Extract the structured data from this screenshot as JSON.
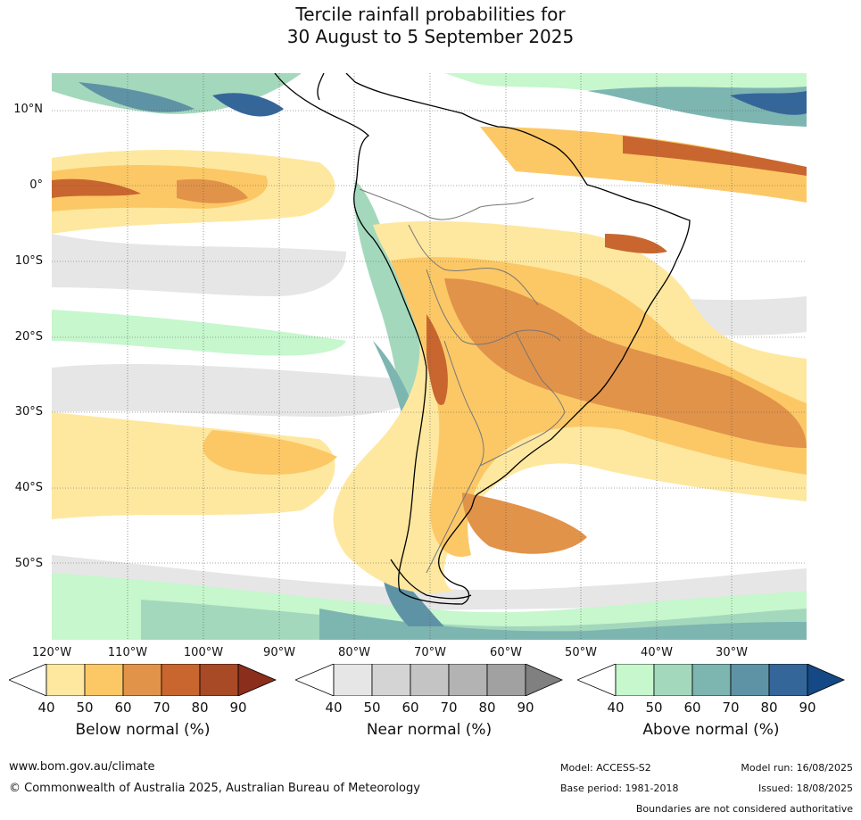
{
  "title": {
    "line1": "Tercile rainfall probabilities for",
    "line2": "30 August to 5 September 2025"
  },
  "map": {
    "lat_labels": [
      "10°N",
      "0°",
      "10°S",
      "20°S",
      "30°S",
      "40°S",
      "50°S"
    ],
    "lon_labels": [
      "120°W",
      "110°W",
      "100°W",
      "90°W",
      "80°W",
      "70°W",
      "60°W",
      "50°W",
      "40°W",
      "30°W"
    ]
  },
  "legends": [
    {
      "title": "Below normal (%)",
      "ticks": [
        "40",
        "50",
        "60",
        "70",
        "80",
        "90"
      ],
      "colors": [
        "#ffffff",
        "#fee8a0",
        "#fcc866",
        "#e1934a",
        "#c9662f",
        "#a84a26",
        "#8b2e1c"
      ]
    },
    {
      "title": "Near normal (%)",
      "ticks": [
        "40",
        "50",
        "60",
        "70",
        "80",
        "90"
      ],
      "colors": [
        "#ffffff",
        "#e6e6e6",
        "#d4d4d4",
        "#c4c4c4",
        "#b3b3b3",
        "#a1a1a1",
        "#808080"
      ]
    },
    {
      "title": "Above normal (%)",
      "ticks": [
        "40",
        "50",
        "60",
        "70",
        "80",
        "90"
      ],
      "colors": [
        "#ffffff",
        "#c6f7cd",
        "#a4d8bc",
        "#7db5b1",
        "#5e93a5",
        "#35669a",
        "#144985"
      ]
    }
  ],
  "footer": {
    "website": "www.bom.gov.au/climate",
    "copyright": "© Commonwealth of Australia 2025, Australian Bureau of Meteorology",
    "model": "Model: ACCESS-S2",
    "base_period": "Base period: 1981-2018",
    "model_run": "Model run: 16/08/2025",
    "issued": "Issued: 18/08/2025",
    "disclaimer": "Boundaries are not considered authoritative"
  }
}
